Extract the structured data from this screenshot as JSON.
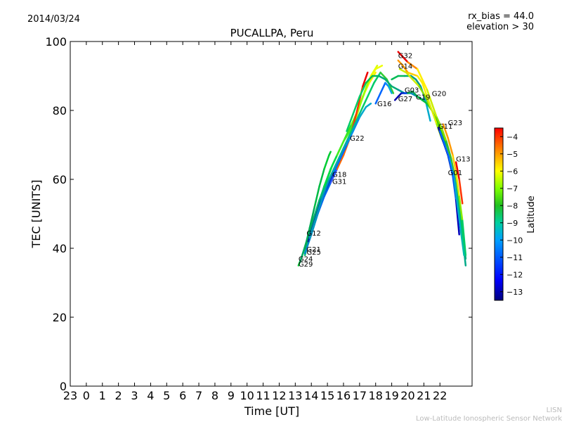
{
  "header": {
    "date": "2014/03/24",
    "rx_bias": "rx_bias = 44.0",
    "elevation": "elevation > 30"
  },
  "footer": {
    "lisn": "LISN",
    "network": "Low-Latitude Ionospheric Sensor Network"
  },
  "chart_data": {
    "type": "line",
    "title": "PUCALLPA, Peru",
    "xlabel": "Time [UT]",
    "ylabel": "TEC [UNITS]",
    "xlim": [
      -1,
      24
    ],
    "ylim": [
      0,
      100
    ],
    "x_ticks": [
      -1,
      0,
      1,
      2,
      3,
      4,
      5,
      6,
      7,
      8,
      9,
      10,
      11,
      12,
      13,
      14,
      15,
      16,
      17,
      18,
      19,
      20,
      21,
      22
    ],
    "x_tick_labels": [
      "23",
      "0",
      "1",
      "2",
      "3",
      "4",
      "5",
      "6",
      "7",
      "8",
      "9",
      "10",
      "11",
      "12",
      "13",
      "14",
      "15",
      "16",
      "17",
      "18",
      "19",
      "20",
      "21",
      "22"
    ],
    "y_ticks": [
      0,
      20,
      40,
      60,
      80,
      100
    ],
    "y_tick_labels": [
      "0",
      "20",
      "40",
      "60",
      "80",
      "100"
    ],
    "colorbar": {
      "label": "Latitude",
      "range": [
        -13.5,
        -3.5
      ],
      "ticks": [
        -4,
        -5,
        -6,
        -7,
        -8,
        -9,
        -10,
        -11,
        -12,
        -13
      ],
      "tick_labels": [
        "−4",
        "−5",
        "−6",
        "−7",
        "−8",
        "−9",
        "−10",
        "−11",
        "−12",
        "−13"
      ],
      "colors": [
        "#00007f",
        "#0000ff",
        "#007fff",
        "#00ffff",
        "#7fff7f",
        "#ffff00",
        "#ff7f00",
        "#ff0000",
        "#7f0000"
      ]
    },
    "series": [
      {
        "name": "G29",
        "label_at": [
          13.2,
          35.5
        ],
        "points": [
          [
            13.2,
            35
          ],
          [
            13.6,
            40
          ],
          [
            14.0,
            46
          ],
          [
            14.4,
            52
          ],
          [
            14.8,
            57
          ],
          [
            15.2,
            61
          ],
          [
            15.6,
            65
          ],
          [
            16.0,
            69
          ],
          [
            16.4,
            73
          ],
          [
            16.8,
            78
          ],
          [
            17.2,
            84
          ],
          [
            17.6,
            88
          ],
          [
            18.0,
            91
          ]
        ],
        "colors": [
          "#00cc33",
          "#22dd22",
          "#66ee00",
          "#aaff00",
          "#ccff00",
          "#ffee00"
        ]
      },
      {
        "name": "G24",
        "label_at": [
          13.2,
          37
        ],
        "points": [
          [
            13.3,
            36
          ],
          [
            13.7,
            42
          ],
          [
            14.1,
            48
          ],
          [
            14.5,
            54
          ],
          [
            14.9,
            59
          ],
          [
            15.3,
            64
          ],
          [
            15.7,
            68
          ],
          [
            16.1,
            72
          ],
          [
            16.5,
            76
          ],
          [
            16.9,
            80
          ],
          [
            17.3,
            85
          ],
          [
            17.7,
            90
          ],
          [
            18.1,
            93
          ]
        ],
        "colors": [
          "#00aa66",
          "#00cc44",
          "#33dd22",
          "#88ff00",
          "#ddff00"
        ]
      },
      {
        "name": "G25",
        "label_at": [
          13.7,
          39
        ],
        "points": [
          [
            13.6,
            38
          ],
          [
            14.0,
            45
          ],
          [
            14.4,
            52
          ],
          [
            14.8,
            58
          ],
          [
            15.2,
            63
          ],
          [
            15.6,
            67
          ],
          [
            16.0,
            71
          ],
          [
            16.4,
            74
          ],
          [
            16.8,
            79
          ],
          [
            17.2,
            84
          ],
          [
            17.6,
            89
          ],
          [
            18.0,
            92
          ],
          [
            18.4,
            93
          ]
        ],
        "colors": [
          "#00c070",
          "#00dd44",
          "#44ee22",
          "#99ff00",
          "#eeff00"
        ]
      },
      {
        "name": "G21",
        "label_at": [
          13.7,
          39.8
        ],
        "points": [
          [
            13.6,
            38.5
          ],
          [
            14.0,
            44
          ],
          [
            14.4,
            50
          ],
          [
            14.8,
            55
          ],
          [
            15.2,
            59
          ],
          [
            15.6,
            63
          ],
          [
            16.0,
            67
          ],
          [
            16.4,
            72
          ],
          [
            16.8,
            79
          ],
          [
            17.2,
            87
          ],
          [
            17.5,
            91
          ]
        ],
        "colors": [
          "#0088cc",
          "#0066ee",
          "#3355ff",
          "#ff6600",
          "#ff3300",
          "#ee0000"
        ]
      },
      {
        "name": "G12",
        "label_at": [
          13.7,
          44.5
        ],
        "points": [
          [
            13.6,
            40
          ],
          [
            13.9,
            46
          ],
          [
            14.2,
            52
          ],
          [
            14.5,
            58
          ],
          [
            14.8,
            63
          ],
          [
            15.1,
            67
          ],
          [
            15.2,
            68
          ]
        ],
        "colors": [
          "#00aa55",
          "#00bb44",
          "#00cc33"
        ]
      },
      {
        "name": "G31",
        "label_at": [
          15.3,
          59.5
        ],
        "points": [
          [
            13.8,
            42
          ],
          [
            14.2,
            48
          ],
          [
            14.6,
            54
          ],
          [
            15.0,
            58
          ],
          [
            15.4,
            62
          ],
          [
            15.8,
            66
          ],
          [
            16.2,
            70
          ],
          [
            16.6,
            74
          ],
          [
            17.0,
            78
          ],
          [
            17.4,
            81
          ],
          [
            17.7,
            82
          ]
        ],
        "colors": [
          "#003399",
          "#0044cc",
          "#0066ff",
          "#0088ee",
          "#00aacc"
        ]
      },
      {
        "name": "G18",
        "label_at": [
          15.3,
          61.5
        ],
        "points": [
          [
            13.9,
            43
          ],
          [
            14.3,
            49
          ],
          [
            14.7,
            55
          ],
          [
            15.1,
            60
          ],
          [
            15.5,
            64
          ],
          [
            15.9,
            68
          ],
          [
            16.3,
            72
          ],
          [
            16.7,
            76
          ],
          [
            17.1,
            80
          ],
          [
            17.5,
            84
          ],
          [
            17.9,
            88
          ],
          [
            18.3,
            91
          ],
          [
            18.7,
            89
          ],
          [
            19.1,
            85
          ]
        ],
        "colors": [
          "#0099bb",
          "#00aaaa",
          "#00bb88",
          "#00cc66",
          "#33cc33"
        ]
      },
      {
        "name": "G22",
        "label_at": [
          16.4,
          72
        ],
        "points": [
          [
            16.2,
            74
          ],
          [
            16.6,
            79
          ],
          [
            17.0,
            84
          ],
          [
            17.4,
            88
          ],
          [
            17.8,
            90
          ],
          [
            18.2,
            90
          ],
          [
            18.6,
            89
          ],
          [
            19.0,
            87
          ],
          [
            19.4,
            86
          ],
          [
            19.8,
            85
          ],
          [
            20.2,
            85
          ],
          [
            20.6,
            84
          ],
          [
            21.0,
            83
          ]
        ],
        "colors": [
          "#00cc66",
          "#00bb55",
          "#00aa77",
          "#009999",
          "#0088bb"
        ]
      },
      {
        "name": "G16",
        "label_at": [
          18.1,
          82
        ],
        "points": [
          [
            18.0,
            82
          ],
          [
            18.3,
            85
          ],
          [
            18.6,
            88
          ],
          [
            18.8,
            87
          ],
          [
            19.0,
            85
          ]
        ],
        "colors": [
          "#0066ff",
          "#0088ff",
          "#00aadd"
        ]
      },
      {
        "name": "G27",
        "label_at": [
          19.4,
          83.5
        ],
        "points": [
          [
            19.2,
            83
          ],
          [
            19.4,
            84
          ],
          [
            19.6,
            85
          ],
          [
            19.8,
            85
          ],
          [
            20.0,
            85
          ]
        ],
        "colors": [
          "#0000aa",
          "#0022cc",
          "#0044ee"
        ]
      },
      {
        "name": "G03",
        "label_at": [
          19.8,
          86
        ],
        "points": [
          [
            19.0,
            89
          ],
          [
            19.4,
            90
          ],
          [
            19.8,
            90
          ],
          [
            20.2,
            90
          ],
          [
            20.5,
            89
          ],
          [
            20.8,
            87
          ],
          [
            21.1,
            83
          ],
          [
            21.4,
            77
          ]
        ],
        "colors": [
          "#00bb55",
          "#00aa66",
          "#009988",
          "#0099aa",
          "#00aacc"
        ]
      },
      {
        "name": "G19",
        "label_at": [
          20.5,
          84
        ],
        "points": [
          [
            20.0,
            85
          ],
          [
            20.3,
            85.5
          ],
          [
            20.6,
            84
          ],
          [
            20.9,
            83
          ],
          [
            21.2,
            82
          ],
          [
            21.5,
            80
          ]
        ],
        "colors": [
          "#00aa55",
          "#00bb44",
          "#22cc22"
        ]
      },
      {
        "name": "G20",
        "label_at": [
          21.5,
          85
        ],
        "points": [
          [
            19.5,
            92
          ],
          [
            19.9,
            91
          ],
          [
            20.3,
            89
          ],
          [
            20.7,
            87
          ],
          [
            21.1,
            84
          ],
          [
            21.5,
            80
          ],
          [
            21.9,
            76
          ],
          [
            22.3,
            71
          ],
          [
            22.7,
            65
          ],
          [
            23.1,
            57
          ],
          [
            23.4,
            46
          ],
          [
            23.6,
            37
          ]
        ],
        "colors": [
          "#ccee00",
          "#88dd00",
          "#33cc00",
          "#00bb44",
          "#00aa77"
        ]
      },
      {
        "name": "G32",
        "label_at": [
          19.4,
          96
        ],
        "points": [
          [
            19.4,
            97
          ],
          [
            19.6,
            96
          ],
          [
            19.8,
            95
          ],
          [
            20.0,
            94
          ],
          [
            20.3,
            93
          ],
          [
            20.6,
            92
          ],
          [
            20.9,
            89
          ],
          [
            21.2,
            86
          ],
          [
            21.5,
            82
          ],
          [
            21.8,
            78
          ],
          [
            22.1,
            75
          ],
          [
            22.4,
            71
          ],
          [
            22.7,
            66
          ],
          [
            23.0,
            59
          ],
          [
            23.3,
            48
          ],
          [
            23.6,
            35
          ]
        ],
        "colors": [
          "#ee0000",
          "#ff8800",
          "#ffee00",
          "#ccee00",
          "#88dd00",
          "#33bb33",
          "#00aa88"
        ]
      },
      {
        "name": "G14",
        "label_at": [
          19.4,
          93
        ],
        "points": [
          [
            19.4,
            94.5
          ],
          [
            19.7,
            93
          ],
          [
            20.0,
            91
          ],
          [
            20.3,
            90.5
          ],
          [
            20.6,
            90
          ],
          [
            20.9,
            88
          ],
          [
            21.2,
            84
          ],
          [
            21.5,
            80
          ],
          [
            21.8,
            76
          ],
          [
            22.1,
            72
          ],
          [
            22.4,
            69
          ],
          [
            22.7,
            65
          ],
          [
            23.0,
            57
          ],
          [
            23.3,
            47
          ],
          [
            23.5,
            40
          ]
        ],
        "colors": [
          "#ff9900",
          "#ffcc00",
          "#ffee00",
          "#ddee00",
          "#99ee00",
          "#55dd00",
          "#00cc55"
        ]
      },
      {
        "name": "G11",
        "label_at": [
          21.9,
          75.5
        ],
        "points": [
          [
            21.9,
            75
          ],
          [
            22.2,
            71
          ],
          [
            22.5,
            67
          ],
          [
            22.8,
            61
          ],
          [
            23.0,
            54
          ],
          [
            23.2,
            44
          ]
        ],
        "colors": [
          "#0000aa",
          "#0033cc",
          "#0055ee",
          "#0000bb"
        ]
      },
      {
        "name": "G23",
        "label_at": [
          22.5,
          76.5
        ],
        "points": [
          [
            22.2,
            76
          ],
          [
            22.5,
            72
          ],
          [
            22.8,
            67
          ],
          [
            23.0,
            62
          ],
          [
            23.2,
            55
          ],
          [
            23.4,
            48
          ],
          [
            23.6,
            38
          ]
        ],
        "colors": [
          "#ff9900",
          "#ffcc00",
          "#ddee00",
          "#88ee00",
          "#00cc66"
        ]
      },
      {
        "name": "G13",
        "label_at": [
          23.0,
          66
        ],
        "points": [
          [
            23.0,
            65
          ],
          [
            23.2,
            60
          ],
          [
            23.4,
            53
          ]
        ],
        "colors": [
          "#ee0000",
          "#ff3300"
        ]
      },
      {
        "name": "G01",
        "label_at": [
          22.5,
          62
        ],
        "points": [
          [
            22.0,
            74
          ],
          [
            22.3,
            70
          ],
          [
            22.6,
            66
          ],
          [
            22.9,
            60
          ],
          [
            23.1,
            52
          ],
          [
            23.3,
            45
          ],
          [
            23.5,
            38
          ]
        ],
        "colors": [
          "#0066ff",
          "#0088ff",
          "#00aacc",
          "#00bbaa"
        ]
      }
    ]
  }
}
